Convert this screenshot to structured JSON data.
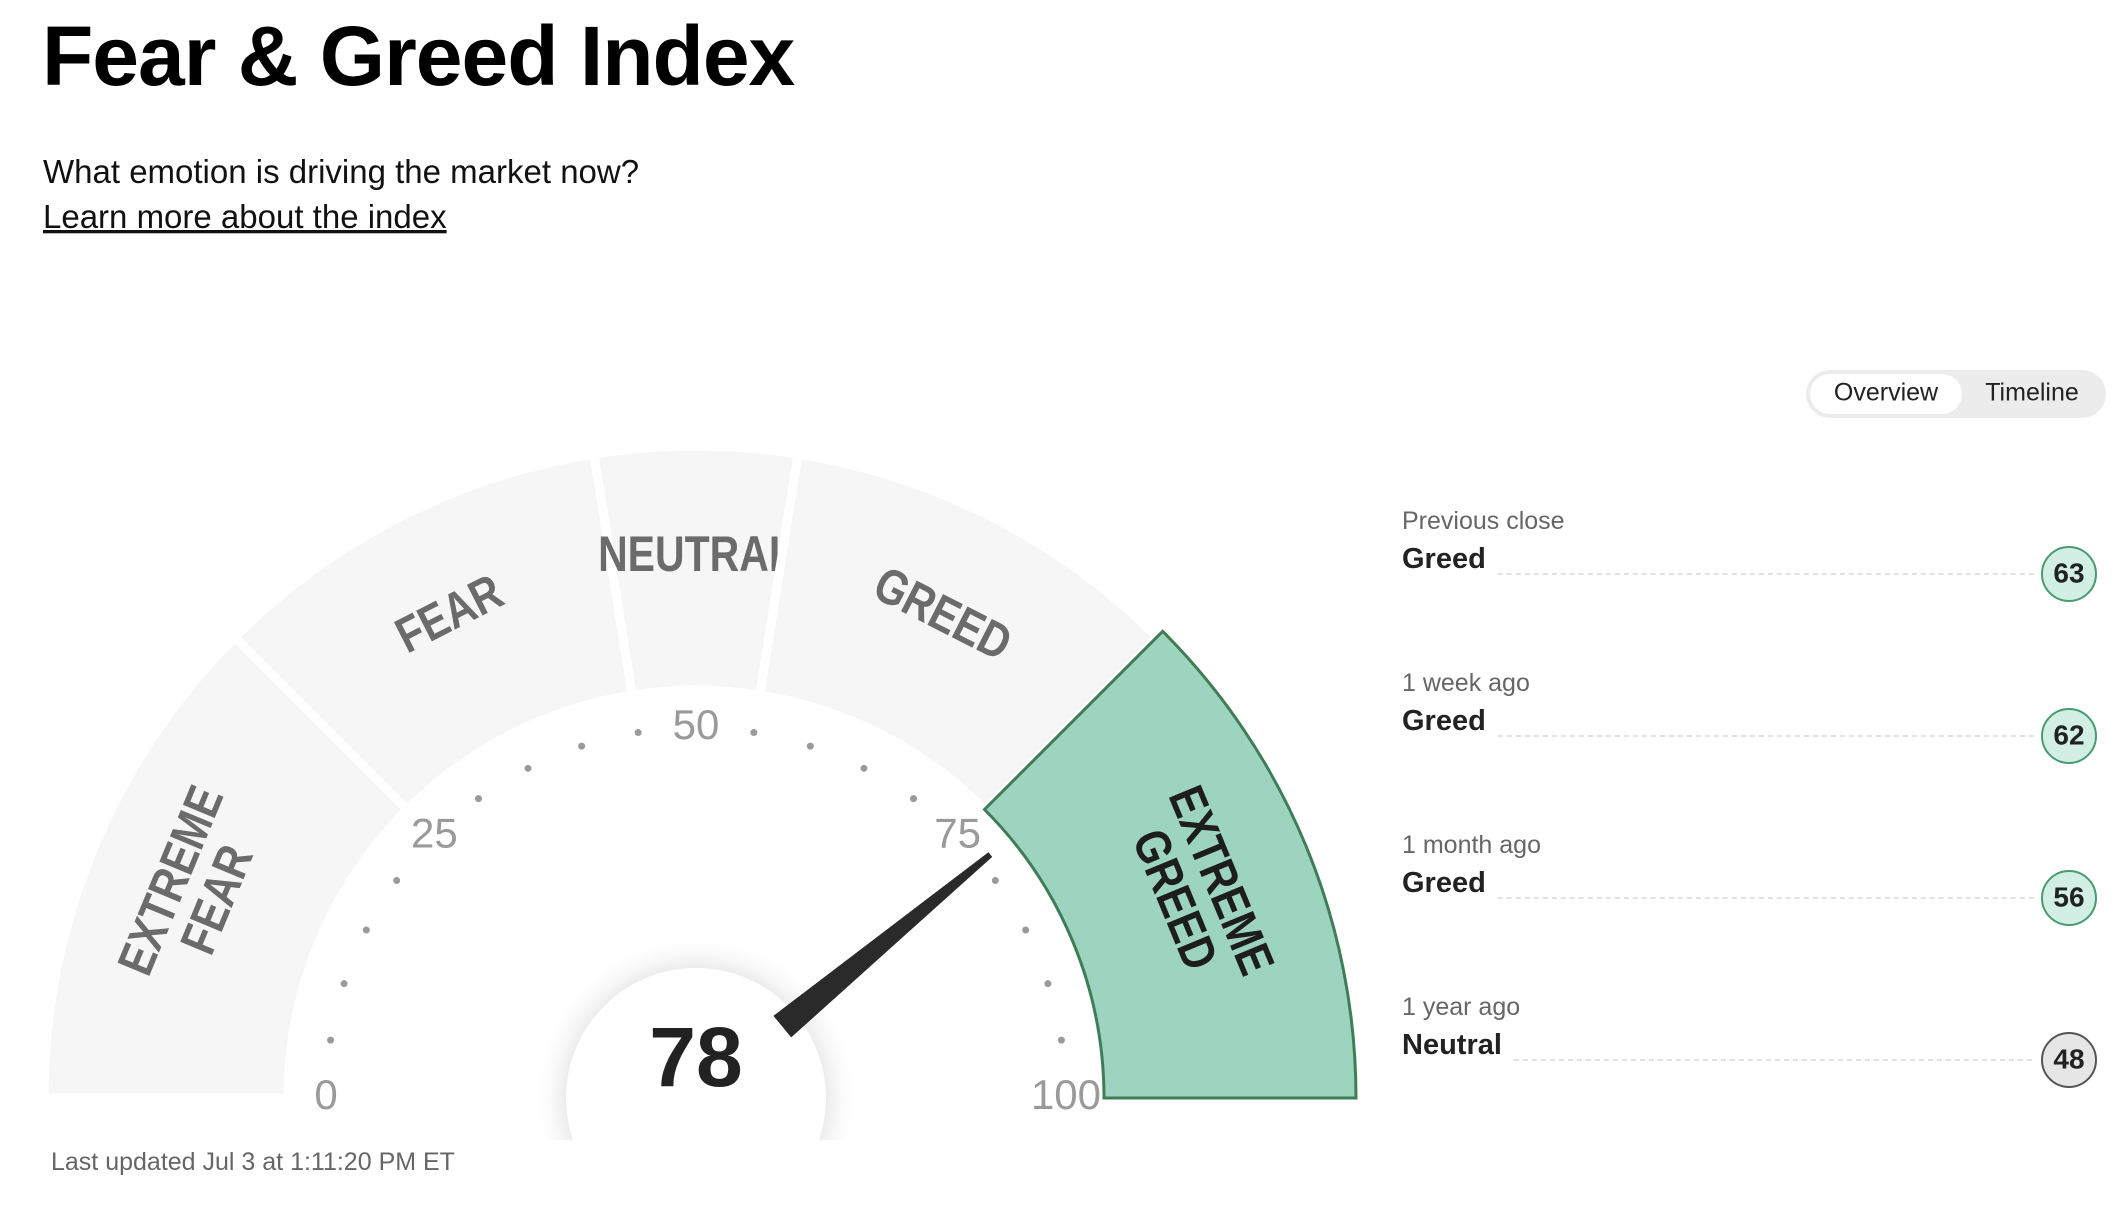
{
  "header": {
    "title": "Fear & Greed Index",
    "subtitle": "What emotion is driving the market now?",
    "link": "Learn more about the index"
  },
  "tabs": [
    "Overview",
    "Timeline"
  ],
  "gauge": {
    "value": 78,
    "min": 0,
    "max": 100,
    "ticks": [
      0,
      25,
      50,
      75,
      100
    ],
    "segments": [
      {
        "label": [
          "EXTREME",
          "FEAR"
        ],
        "from": 0,
        "to": 25
      },
      {
        "label": [
          "FEAR"
        ],
        "from": 25,
        "to": 45
      },
      {
        "label": [
          "NEUTRAL"
        ],
        "from": 45,
        "to": 55
      },
      {
        "label": [
          "GREED"
        ],
        "from": 55,
        "to": 75
      },
      {
        "label": [
          "EXTREME",
          "GREED"
        ],
        "from": 75,
        "to": 100
      }
    ]
  },
  "history": [
    {
      "period": "Previous close",
      "status": "Greed",
      "value": 63
    },
    {
      "period": "1 week ago",
      "status": "Greed",
      "value": 62
    },
    {
      "period": "1 month ago",
      "status": "Greed",
      "value": 56
    },
    {
      "period": "1 year ago",
      "status": "Neutral",
      "value": 48
    }
  ],
  "footer": "Last updated Jul 3 at 1:11:20 PM ET"
}
